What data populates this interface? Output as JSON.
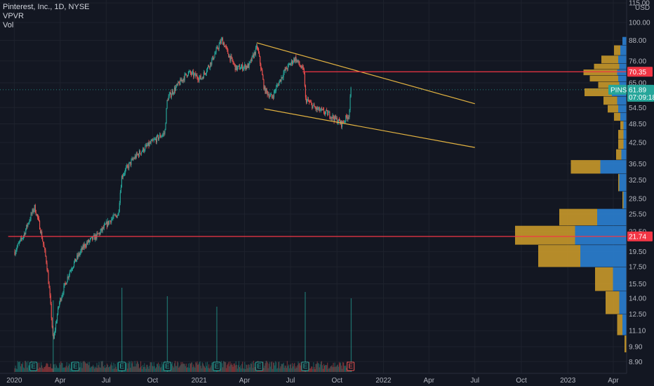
{
  "symbol_line": "Pinterest, Inc., 1D, NYSE",
  "indicators": [
    "VPVR",
    "Vol"
  ],
  "currency": "USD",
  "colors": {
    "background": "#131722",
    "up": "#26a69a",
    "down": "#ef5350",
    "trendline": "#e3b341",
    "hline": "#f23645",
    "vp_up": "#2b7fd1",
    "vp_down": "#c8982a",
    "grid": "#1e222d"
  },
  "chart_data": {
    "type": "candlestick",
    "y_scale": "log",
    "ylim": [
      8.3,
      115
    ],
    "x_ticks": [
      "2020",
      "Apr",
      "Jul",
      "Oct",
      "2021",
      "Apr",
      "Jul",
      "Oct",
      "2022",
      "Apr",
      "Jul",
      "Oct",
      "2023",
      "Apr"
    ],
    "y_ticks": [
      115,
      100,
      88,
      76,
      65,
      54.5,
      48.5,
      42.5,
      36.5,
      32.5,
      28.5,
      25.5,
      22.5,
      19.5,
      17.5,
      15.5,
      14,
      12.5,
      11.1,
      9.9,
      8.9
    ],
    "y_tick_labels": [
      "115.00",
      "100.00",
      "88.00",
      "76.00",
      "65.00",
      "54.50",
      "48.50",
      "42.50",
      "36.50",
      "32.50",
      "28.50",
      "25.50",
      "22.50",
      "19.50",
      "17.50",
      "15.50",
      "14.00",
      "12.50",
      "11.10",
      "9.90",
      "8.90"
    ],
    "price_path": [
      [
        "2020-01-02",
        19.5
      ],
      [
        "2020-01-20",
        22.0
      ],
      [
        "2020-02-10",
        26.8
      ],
      [
        "2020-02-20",
        23.5
      ],
      [
        "2020-03-05",
        18.0
      ],
      [
        "2020-03-18",
        10.2
      ],
      [
        "2020-03-30",
        13.5
      ],
      [
        "2020-04-20",
        17.0
      ],
      [
        "2020-05-20",
        20.5
      ],
      [
        "2020-06-15",
        22.0
      ],
      [
        "2020-07-10",
        24.5
      ],
      [
        "2020-07-25",
        25.5
      ],
      [
        "2020-08-01",
        33.5
      ],
      [
        "2020-08-25",
        38.0
      ],
      [
        "2020-09-25",
        42.0
      ],
      [
        "2020-10-25",
        45.5
      ],
      [
        "2020-10-30",
        58.0
      ],
      [
        "2020-11-20",
        64.0
      ],
      [
        "2020-12-10",
        70.0
      ],
      [
        "2021-01-05",
        67.0
      ],
      [
        "2021-01-25",
        75.5
      ],
      [
        "2021-02-15",
        88.5
      ],
      [
        "2021-03-01",
        79.0
      ],
      [
        "2021-03-15",
        72.0
      ],
      [
        "2021-04-10",
        73.5
      ],
      [
        "2021-04-26",
        84.0
      ],
      [
        "2021-05-10",
        62.0
      ],
      [
        "2021-05-25",
        58.5
      ],
      [
        "2021-06-20",
        71.0
      ],
      [
        "2021-07-10",
        77.5
      ],
      [
        "2021-07-28",
        70.0
      ],
      [
        "2021-07-30",
        58.0
      ],
      [
        "2021-08-20",
        54.0
      ],
      [
        "2021-09-15",
        52.0
      ],
      [
        "2021-10-10",
        48.5
      ],
      [
        "2021-10-25",
        52.0
      ],
      [
        "2021-10-29",
        63.0
      ]
    ],
    "volume_spikes": [
      [
        "2020-03-18",
        0.7
      ],
      [
        "2020-08-01",
        1.0
      ],
      [
        "2020-10-30",
        0.8
      ],
      [
        "2021-02-05",
        0.55
      ],
      [
        "2021-07-30",
        0.9
      ],
      [
        "2021-10-29",
        0.75
      ]
    ],
    "earnings_markers": [
      "2020-02-08",
      "2020-05-01",
      "2020-08-01",
      "2020-10-30",
      "2021-02-05",
      "2021-04-30",
      "2021-07-30",
      "2021-10-28"
    ],
    "earnings_label": "E",
    "trendlines": [
      {
        "from": [
          "2021-04-25",
          86.5
        ],
        "to": [
          "2022-07-01",
          56.0
        ]
      },
      {
        "from": [
          "2021-05-10",
          54.0
        ],
        "to": [
          "2022-07-01",
          41.0
        ]
      }
    ],
    "hlines": [
      {
        "price": 70.35,
        "label": "70.35",
        "from": "2021-07-25"
      },
      {
        "price": 21.74,
        "label": "21.74",
        "from": "2019-12-20"
      }
    ],
    "last_price": {
      "price": 61.89,
      "symbol": "PINS",
      "value": "61.89",
      "countdown": "07:09:18"
    },
    "volume_profile": [
      {
        "price": 88,
        "up": 0.04,
        "down": 0.0
      },
      {
        "price": 82,
        "up": 0.06,
        "down": 0.06
      },
      {
        "price": 76,
        "up": 0.08,
        "down": 0.16
      },
      {
        "price": 73,
        "up": 0.07,
        "down": 0.24
      },
      {
        "price": 70,
        "up": 0.09,
        "down": 0.32
      },
      {
        "price": 67,
        "up": 0.08,
        "down": 0.27
      },
      {
        "price": 64,
        "up": 0.07,
        "down": 0.2
      },
      {
        "price": 61,
        "up": 0.14,
        "down": 0.26
      },
      {
        "price": 57,
        "up": 0.09,
        "down": 0.13
      },
      {
        "price": 54,
        "up": 0.08,
        "down": 0.1
      },
      {
        "price": 51,
        "up": 0.06,
        "down": 0.06
      },
      {
        "price": 48,
        "up": 0.03,
        "down": 0.03
      },
      {
        "price": 45,
        "up": 0.03,
        "down": 0.05
      },
      {
        "price": 42,
        "up": 0.03,
        "down": 0.05
      },
      {
        "price": 39,
        "up": 0.05,
        "down": 0.05
      },
      {
        "price": 36,
        "up": 0.25,
        "down": 0.28
      },
      {
        "price": 32,
        "up": 0.07,
        "down": 0.01
      },
      {
        "price": 28,
        "up": 0.03,
        "down": 0.01
      },
      {
        "price": 25,
        "up": 0.28,
        "down": 0.36
      },
      {
        "price": 22,
        "up": 0.49,
        "down": 0.57
      },
      {
        "price": 19,
        "up": 0.44,
        "down": 0.4
      },
      {
        "price": 16,
        "up": 0.13,
        "down": 0.17
      },
      {
        "price": 13.5,
        "up": 0.07,
        "down": 0.13
      },
      {
        "price": 11.5,
        "up": 0.04,
        "down": 0.05
      },
      {
        "price": 10,
        "up": 0.0,
        "down": 0.02
      }
    ]
  }
}
